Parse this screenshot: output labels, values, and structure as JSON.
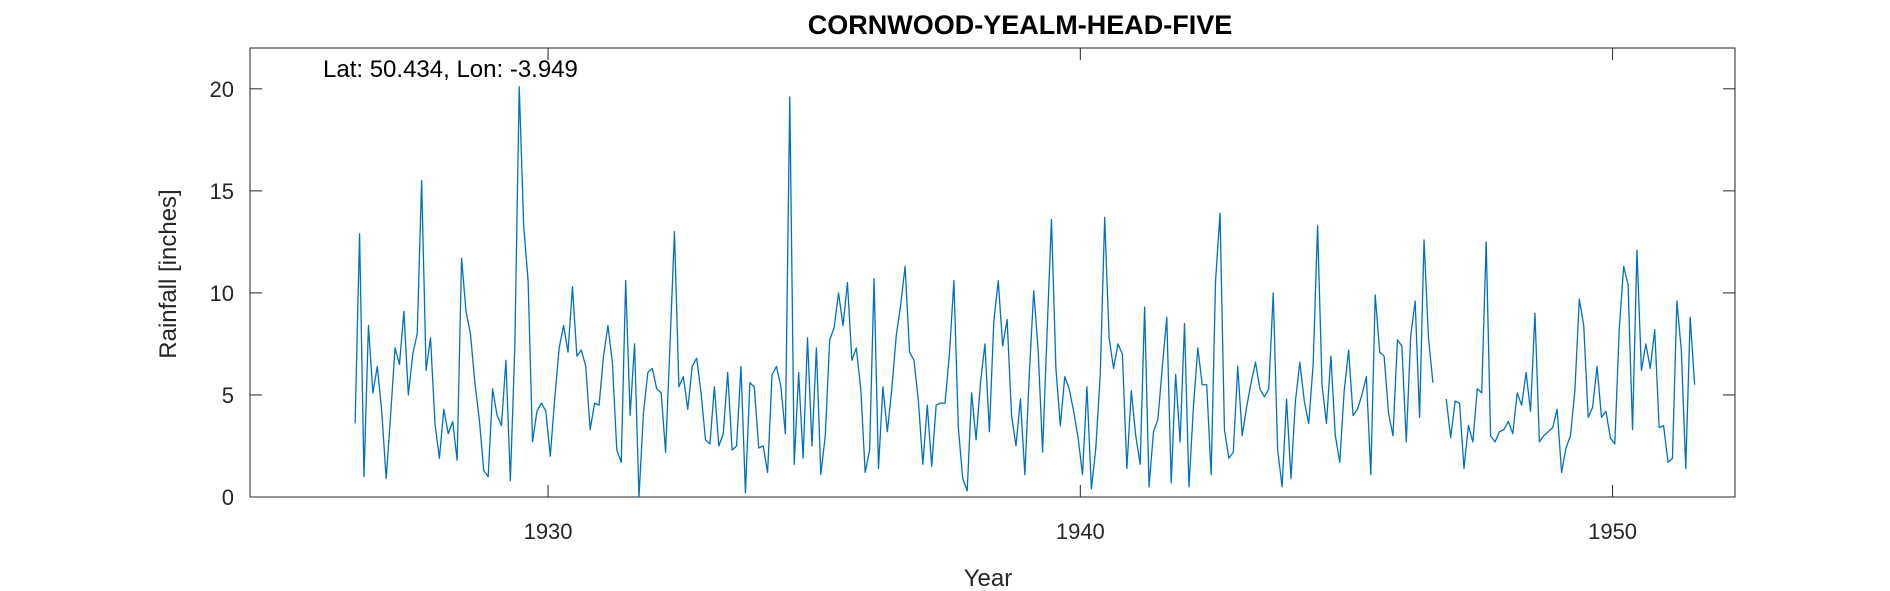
{
  "chart_data": {
    "type": "line",
    "title": "CORNWOOD-YEALM-HEAD-FIVE",
    "xlabel": "Year",
    "ylabel": "Rainfall [inches]",
    "annotation": "Lat: 50.434, Lon: -3.949",
    "xlim": [
      1924.4,
      1952.3
    ],
    "ylim": [
      0,
      22
    ],
    "xticks": [
      1930,
      1940,
      1950
    ],
    "yticks": [
      0,
      5,
      10,
      15,
      20
    ],
    "grid": false,
    "line_color": "#0072BD",
    "series": [
      {
        "x_start": 1926.375,
        "x_step": 0.08333,
        "values": [
          3.6,
          12.9,
          1.0,
          8.4,
          5.1,
          6.4,
          4.2,
          0.9,
          4.0,
          7.3,
          6.5,
          9.1,
          5.0,
          7.0,
          8.0,
          15.5,
          6.2,
          7.8,
          3.6,
          1.9,
          4.3,
          3.1,
          3.7,
          1.8,
          11.7,
          9.1,
          8.0,
          5.6,
          3.8,
          1.3,
          1.0,
          5.3,
          4.0,
          3.5,
          6.7,
          0.8,
          7.3,
          20.1,
          13.3,
          10.6,
          2.7,
          4.2,
          4.6,
          4.2,
          2.0,
          4.8,
          7.3,
          8.4,
          7.1,
          10.3,
          6.9,
          7.2,
          6.4,
          3.3,
          4.6,
          4.5,
          6.9,
          8.4,
          6.6,
          2.3,
          1.7,
          10.6,
          4.0,
          7.5,
          0.0,
          4.1,
          6.1,
          6.3,
          5.3,
          5.1,
          2.2,
          7.5,
          13.0,
          5.4,
          5.9,
          4.3,
          6.4,
          6.8,
          5.1,
          2.8,
          2.6,
          5.4,
          2.5,
          3.1,
          6.1,
          2.3,
          2.5,
          6.4,
          0.2,
          5.6,
          5.4,
          2.4,
          2.5,
          1.2,
          6.0,
          6.4,
          5.4,
          3.1,
          19.6,
          1.6,
          6.1,
          1.9,
          7.8,
          2.5,
          7.3,
          1.1,
          3.0,
          7.7,
          8.3,
          10.0,
          8.4,
          10.5,
          6.7,
          7.3,
          5.3,
          1.2,
          2.3,
          10.7,
          1.4,
          5.4,
          3.2,
          5.3,
          7.9,
          9.4,
          11.3,
          7.1,
          6.7,
          4.7,
          1.6,
          4.5,
          1.5,
          4.5,
          4.6,
          4.6,
          7.0,
          10.6,
          3.4,
          0.9,
          0.3,
          5.1,
          2.8,
          5.6,
          7.5,
          3.2,
          8.6,
          10.6,
          7.4,
          8.7,
          4.0,
          2.5,
          4.8,
          1.1,
          6.0,
          10.1,
          7.2,
          2.2,
          8.0,
          13.6,
          6.3,
          3.5,
          5.9,
          5.3,
          4.2,
          2.9,
          1.1,
          5.4,
          0.4,
          2.4,
          6.0,
          13.7,
          7.8,
          6.3,
          7.5,
          7.0,
          1.4,
          5.2,
          3.0,
          1.6,
          9.3,
          0.5,
          3.2,
          3.8,
          6.4,
          8.8,
          0.7,
          6.0,
          2.7,
          8.5,
          0.5,
          4.4,
          7.3,
          5.5,
          5.5,
          1.1,
          10.6,
          13.9,
          3.3,
          1.9,
          2.2,
          6.4,
          3.0,
          4.4,
          5.6,
          6.6,
          5.3,
          4.9,
          5.3,
          10.0,
          2.3,
          0.5,
          4.8,
          0.9,
          4.7,
          6.6,
          4.7,
          3.6,
          6.5,
          13.3,
          5.5,
          3.6,
          6.9,
          3.0,
          1.7,
          5.2,
          7.2,
          4.0,
          4.3,
          5.0,
          5.9,
          1.1,
          9.9,
          7.1,
          6.9,
          4.1,
          3.0,
          7.7,
          7.4,
          2.7,
          7.9,
          9.6,
          3.9,
          12.6,
          7.8,
          5.6
        ]
      },
      {
        "x_start": 1946.875,
        "x_step": 0.08333,
        "values": [
          4.8,
          2.9,
          4.7,
          4.6,
          1.4,
          3.5,
          2.7,
          5.3,
          5.1,
          12.5,
          3.0,
          2.7,
          3.2,
          3.3,
          3.7,
          3.1,
          5.1,
          4.5,
          6.1,
          4.2,
          9.0,
          2.7,
          3.0,
          3.2,
          3.4,
          4.3,
          1.2,
          2.4,
          3.0,
          5.2,
          9.7,
          8.4,
          3.9,
          4.4,
          6.4,
          3.9,
          4.2,
          2.9,
          2.6,
          8.2,
          11.3,
          10.4,
          3.3,
          12.1,
          6.2,
          7.5,
          6.3,
          8.2,
          3.4,
          3.5,
          1.7,
          1.9,
          9.6,
          7.2,
          1.4,
          8.8,
          5.5
        ]
      }
    ]
  }
}
